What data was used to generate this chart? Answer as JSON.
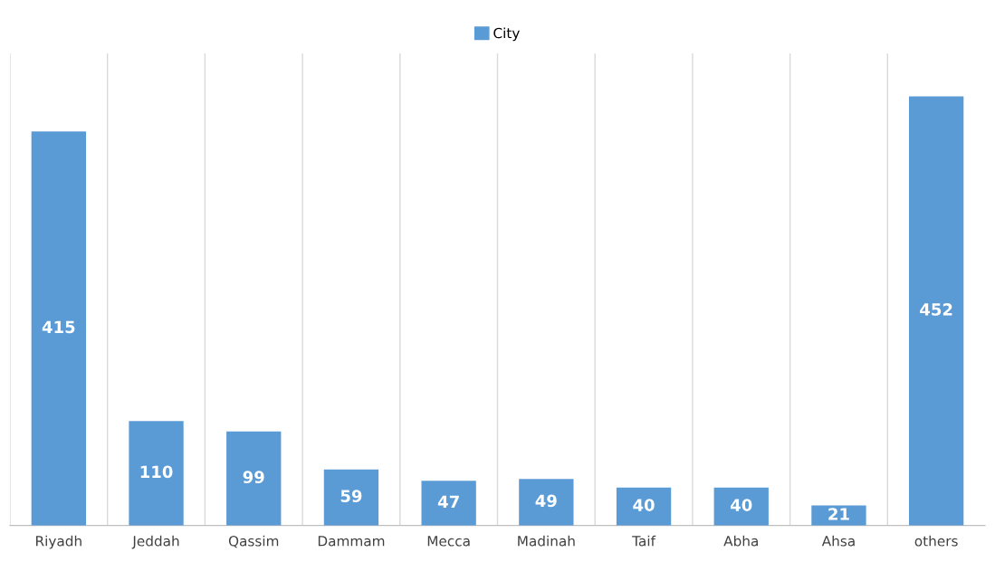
{
  "chart_data": {
    "type": "bar",
    "categories": [
      "Riyadh",
      "Jeddah",
      "Qassim",
      "Dammam",
      "Mecca",
      "Madinah",
      "Taif",
      "Abha",
      "Ahsa",
      "others"
    ],
    "series": [
      {
        "name": "City",
        "color": "#5b9bd5",
        "values": [
          415,
          110,
          99,
          59,
          47,
          49,
          40,
          40,
          21,
          452
        ]
      }
    ],
    "data_labels": true,
    "grid": "x",
    "legend": "top"
  }
}
